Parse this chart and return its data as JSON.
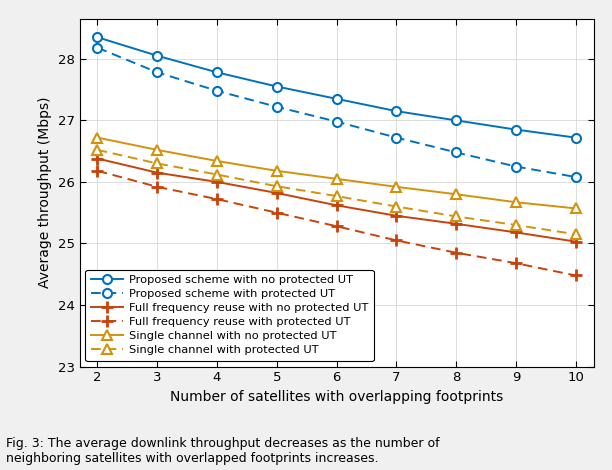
{
  "x": [
    2,
    3,
    4,
    5,
    6,
    7,
    8,
    9,
    10
  ],
  "proposed_no_protected": [
    28.35,
    28.05,
    27.78,
    27.55,
    27.35,
    27.15,
    27.0,
    26.85,
    26.72
  ],
  "proposed_protected": [
    28.18,
    27.78,
    27.48,
    27.22,
    26.98,
    26.72,
    26.48,
    26.25,
    26.08
  ],
  "full_freq_no_protected": [
    26.38,
    26.15,
    26.0,
    25.82,
    25.62,
    25.45,
    25.32,
    25.18,
    25.03
  ],
  "full_freq_protected": [
    26.18,
    25.92,
    25.72,
    25.5,
    25.28,
    25.05,
    24.85,
    24.68,
    24.48
  ],
  "single_no_protected": [
    26.72,
    26.52,
    26.34,
    26.18,
    26.05,
    25.92,
    25.8,
    25.67,
    25.57
  ],
  "single_protected": [
    26.52,
    26.3,
    26.12,
    25.93,
    25.77,
    25.6,
    25.44,
    25.3,
    25.15
  ],
  "blue_color": "#0072bd",
  "orange_color": "#c8420a",
  "yellow_color": "#d4920a",
  "fig_bg_color": "#f0f0f0",
  "axes_bg_color": "#ffffff",
  "grid_color": "#d0d0d0",
  "ylabel": "Average throughput (Mbps)",
  "xlabel": "Number of satellites with overlapping footprints",
  "caption": "Fig. 3: The average downlink throughput decreases as the number of\nneighboring satellites with overlapped footprints increases.",
  "ylim": [
    23,
    28.65
  ],
  "yticks": [
    23,
    24,
    25,
    26,
    27,
    28
  ],
  "xticks": [
    2,
    3,
    4,
    5,
    6,
    7,
    8,
    9,
    10
  ],
  "legend_labels": [
    "Proposed scheme with no protected UT",
    "Proposed scheme with protected UT",
    "Full frequency reuse with no protected UT",
    "Full frequency reuse with protected UT",
    "Single channel with no protected UT",
    "Single channel with protected UT"
  ]
}
